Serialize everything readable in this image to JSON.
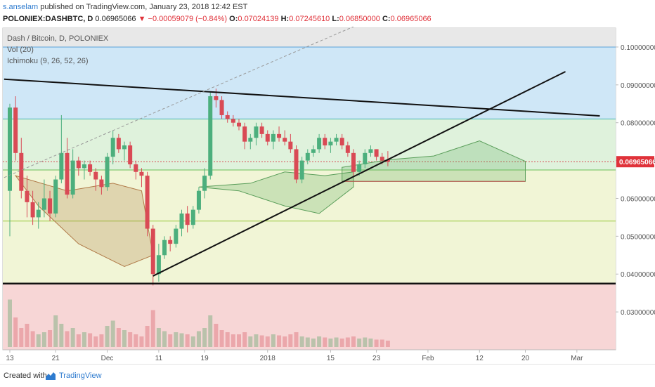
{
  "header": {
    "author": "s.anselam",
    "published": "published on TradingView.com, January 23, 2018 12:42 EST",
    "symbol": "POLONIEX:DASHBTC, D",
    "last": "0.06965066",
    "change": "−0.00059079 (−0.84%)",
    "open_label": "O:",
    "open": "0.07024139",
    "high_label": "H:",
    "high": "0.07245610",
    "low_label": "L:",
    "low": "0.06850000",
    "close_label": "C:",
    "close": "0.06965066"
  },
  "footer": {
    "created": "Created with",
    "brand": "TradingView"
  },
  "chart_data": {
    "type": "candlestick",
    "title": "Dash / Bitcoin, D, POLONIEX",
    "indicators": [
      "Vol (20)",
      "Ichimoku (9, 26, 52, 26)"
    ],
    "y_axis": {
      "min": 0.02,
      "max": 0.105,
      "ticks": [
        "0.03000000",
        "0.04000000",
        "0.05000000",
        "0.06000000",
        "0.07000000",
        "0.08000000",
        "0.09000000",
        "0.10000000"
      ]
    },
    "last_price": "0.06965066",
    "x_ticks": [
      "13",
      "21",
      "Dec",
      "11",
      "19",
      "2018",
      "15",
      "23",
      "Feb",
      "12",
      "20",
      "Mar"
    ],
    "x_tick_index": [
      0,
      8,
      17,
      26,
      34,
      45,
      56,
      64,
      73,
      82,
      90,
      99
    ],
    "candles": [
      [
        0.062,
        0.085,
        0.05,
        0.084
      ],
      [
        0.084,
        0.087,
        0.07,
        0.072
      ],
      [
        0.072,
        0.076,
        0.06,
        0.062
      ],
      [
        0.062,
        0.066,
        0.055,
        0.059
      ],
      [
        0.059,
        0.062,
        0.053,
        0.055
      ],
      [
        0.055,
        0.059,
        0.052,
        0.057
      ],
      [
        0.057,
        0.065,
        0.055,
        0.06
      ],
      [
        0.06,
        0.062,
        0.054,
        0.056
      ],
      [
        0.056,
        0.066,
        0.055,
        0.065
      ],
      [
        0.065,
        0.082,
        0.064,
        0.072
      ],
      [
        0.072,
        0.076,
        0.06,
        0.061
      ],
      [
        0.061,
        0.073,
        0.06,
        0.07
      ],
      [
        0.07,
        0.071,
        0.066,
        0.068
      ],
      [
        0.068,
        0.07,
        0.065,
        0.069
      ],
      [
        0.069,
        0.07,
        0.066,
        0.067
      ],
      [
        0.067,
        0.068,
        0.062,
        0.065
      ],
      [
        0.065,
        0.066,
        0.061,
        0.063
      ],
      [
        0.063,
        0.072,
        0.062,
        0.071
      ],
      [
        0.071,
        0.078,
        0.069,
        0.076
      ],
      [
        0.076,
        0.077,
        0.072,
        0.073
      ],
      [
        0.073,
        0.075,
        0.07,
        0.074
      ],
      [
        0.074,
        0.075,
        0.068,
        0.069
      ],
      [
        0.069,
        0.07,
        0.065,
        0.067
      ],
      [
        0.067,
        0.068,
        0.063,
        0.066
      ],
      [
        0.066,
        0.067,
        0.05,
        0.052
      ],
      [
        0.052,
        0.053,
        0.037,
        0.04
      ],
      [
        0.04,
        0.048,
        0.038,
        0.045
      ],
      [
        0.045,
        0.05,
        0.044,
        0.049
      ],
      [
        0.049,
        0.05,
        0.046,
        0.048
      ],
      [
        0.048,
        0.053,
        0.047,
        0.052
      ],
      [
        0.052,
        0.057,
        0.05,
        0.056
      ],
      [
        0.056,
        0.058,
        0.051,
        0.053
      ],
      [
        0.053,
        0.058,
        0.052,
        0.057
      ],
      [
        0.057,
        0.063,
        0.056,
        0.062
      ],
      [
        0.062,
        0.068,
        0.06,
        0.066
      ],
      [
        0.066,
        0.088,
        0.065,
        0.087
      ],
      [
        0.087,
        0.089,
        0.084,
        0.086
      ],
      [
        0.086,
        0.087,
        0.081,
        0.082
      ],
      [
        0.082,
        0.083,
        0.08,
        0.081
      ],
      [
        0.081,
        0.082,
        0.079,
        0.08
      ],
      [
        0.08,
        0.081,
        0.078,
        0.079
      ],
      [
        0.079,
        0.08,
        0.073,
        0.075
      ],
      [
        0.075,
        0.077,
        0.073,
        0.076
      ],
      [
        0.076,
        0.08,
        0.074,
        0.079
      ],
      [
        0.079,
        0.08,
        0.076,
        0.077
      ],
      [
        0.077,
        0.078,
        0.074,
        0.075
      ],
      [
        0.075,
        0.078,
        0.073,
        0.077
      ],
      [
        0.077,
        0.079,
        0.075,
        0.076
      ],
      [
        0.076,
        0.078,
        0.074,
        0.075
      ],
      [
        0.075,
        0.077,
        0.072,
        0.073
      ],
      [
        0.073,
        0.074,
        0.064,
        0.065
      ],
      [
        0.065,
        0.071,
        0.064,
        0.07
      ],
      [
        0.07,
        0.073,
        0.069,
        0.072
      ],
      [
        0.072,
        0.074,
        0.071,
        0.073
      ],
      [
        0.073,
        0.077,
        0.072,
        0.076
      ],
      [
        0.076,
        0.077,
        0.073,
        0.074
      ],
      [
        0.074,
        0.076,
        0.072,
        0.075
      ],
      [
        0.075,
        0.077,
        0.074,
        0.076
      ],
      [
        0.076,
        0.077,
        0.073,
        0.074
      ],
      [
        0.074,
        0.075,
        0.071,
        0.072
      ],
      [
        0.072,
        0.073,
        0.066,
        0.067
      ],
      [
        0.067,
        0.07,
        0.066,
        0.069
      ],
      [
        0.069,
        0.073,
        0.068,
        0.072
      ],
      [
        0.072,
        0.074,
        0.071,
        0.073
      ],
      [
        0.073,
        0.073,
        0.07,
        0.071
      ],
      [
        0.071,
        0.072,
        0.069,
        0.07
      ],
      [
        0.0702,
        0.0725,
        0.0685,
        0.0697
      ]
    ],
    "volume": [
      45,
      28,
      18,
      22,
      15,
      12,
      14,
      16,
      30,
      22,
      15,
      18,
      12,
      14,
      13,
      10,
      12,
      20,
      25,
      18,
      16,
      14,
      12,
      10,
      20,
      35,
      18,
      15,
      12,
      14,
      13,
      12,
      10,
      15,
      18,
      30,
      22,
      16,
      14,
      12,
      12,
      14,
      10,
      12,
      11,
      10,
      12,
      11,
      10,
      12,
      14,
      10,
      9,
      8,
      10,
      9,
      8,
      9,
      8,
      9,
      10,
      8,
      9,
      8,
      7,
      7,
      6
    ],
    "volume_max": 60,
    "annotations": [
      {
        "type": "trendline",
        "from": {
          "i": -1,
          "p": 0.0915
        },
        "to": {
          "i": 103,
          "p": 0.0818
        },
        "label": ""
      },
      {
        "type": "trendline",
        "from": {
          "i": 25,
          "p": 0.0395
        },
        "to": {
          "i": 97,
          "p": 0.0935
        },
        "label": ""
      },
      {
        "type": "horizontal",
        "p": 0.0375,
        "label": ""
      }
    ]
  },
  "colors": {
    "up": "#4caf7d",
    "down": "#d94a55",
    "bg_blue": "#cfe7f7",
    "bg_green": "#dff2dc",
    "bg_yellow": "#f1f5d6",
    "bg_red": "#f7d6d6",
    "axis_text": "#555555",
    "price_tag": "#e0323a"
  }
}
